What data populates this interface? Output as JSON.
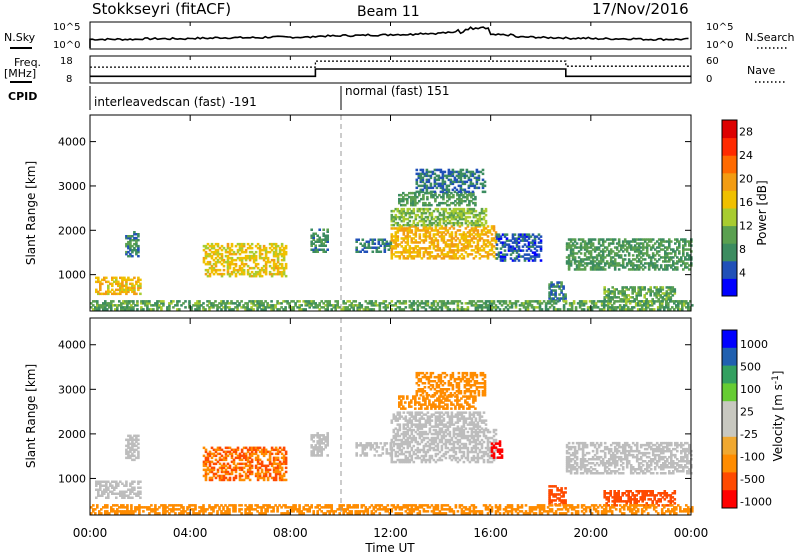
{
  "header": {
    "station": "Stokkseyri (fitACF)",
    "beam": "Beam 11",
    "date": "17/Nov/2016"
  },
  "labels": {
    "nsky": "N.Sky",
    "nsearch": "N.Search",
    "freq": "Freq.",
    "freq_unit": "[MHz]",
    "nave": "Nave",
    "cpid": "CPID",
    "nsky_top": "10^5",
    "nsky_bottom": "10^0",
    "nsearch_top": "10^5",
    "nsearch_bottom": "10^0",
    "freq_top": "18",
    "freq_bottom": "8",
    "nave_top": "60",
    "nave_bottom": "0"
  },
  "cpid_segments": [
    {
      "label": "interleavedscan (fast) -191",
      "start": "00:00",
      "end": "10:00"
    },
    {
      "label": "normal (fast) 151",
      "start": "10:00",
      "end": "24:00"
    }
  ],
  "colors": {
    "power": [
      "#0000ff",
      "#2050b8",
      "#3c8c60",
      "#5aa050",
      "#a8cc30",
      "#f0c000",
      "#f39c12",
      "#ff6a00",
      "#ff2a00",
      "#dd0000"
    ],
    "velocity": [
      "#ff0000",
      "#ff4a00",
      "#ff8c00",
      "#f0a830",
      "#c8c8c0",
      "#c8c8c0",
      "#66cc33",
      "#33a060",
      "#2060b0",
      "#0000ff"
    ],
    "ground_scatter": "#bdbdbd"
  },
  "chart_data": [
    {
      "type": "line",
      "title": "Stokkseyri (fitACF) Beam 11 17/Nov/2016",
      "xlabel": "Time UT",
      "x_ticks": [
        "00:00",
        "04:00",
        "08:00",
        "12:00",
        "16:00",
        "20:00",
        "00:00"
      ],
      "xlim": [
        "00:00",
        "24:00"
      ],
      "series": [
        {
          "name": "N.Sky",
          "values": [
            1.8,
            1.8,
            1.9,
            1.9,
            2.0,
            2.1,
            2.1,
            2.2,
            2.2,
            2.4,
            2.5,
            2.6,
            2.7,
            2.9,
            3.0,
            3.3,
            2.6,
            2.2,
            2.1,
            2.0,
            1.9,
            1.9,
            1.8,
            1.8
          ]
        },
        {
          "name": "Freq.",
          "unit": "MHz",
          "ylim": [
            8,
            18
          ],
          "steps": [
            {
              "from": "00:00",
              "to": "09:00",
              "value": 10.5
            },
            {
              "from": "09:00",
              "to": "19:00",
              "value": 13.2
            },
            {
              "from": "19:00",
              "to": "24:00",
              "value": 10.5
            }
          ]
        },
        {
          "name": "Nave",
          "ylim": [
            0,
            60
          ],
          "steps": [
            {
              "from": "00:00",
              "to": "09:00",
              "value": 25
            },
            {
              "from": "09:00",
              "to": "19:00",
              "value": 45
            },
            {
              "from": "19:00",
              "to": "24:00",
              "value": 28
            }
          ]
        }
      ]
    },
    {
      "type": "heatmap",
      "name": "Power",
      "ylabel": "Slant Range [km]",
      "y_ticks": [
        1000,
        2000,
        3000,
        4000
      ],
      "ylim": [
        180,
        4600
      ],
      "colorbar": {
        "label": "Power [dB]",
        "ticks": [
          4,
          8,
          12,
          16,
          20,
          24,
          28
        ],
        "range": [
          0,
          30
        ]
      },
      "regions": [
        {
          "t0": 0.2,
          "t1": 2.0,
          "r0": 550,
          "r1": 950,
          "value": 17
        },
        {
          "t0": 1.4,
          "t1": 1.9,
          "r0": 1400,
          "r1": 1950,
          "value": 8
        },
        {
          "t0": 4.5,
          "t1": 7.8,
          "r0": 950,
          "r1": 1700,
          "value": 16
        },
        {
          "t0": 8.8,
          "t1": 9.5,
          "r0": 1500,
          "r1": 2000,
          "value": 8
        },
        {
          "t0": 10.6,
          "t1": 12.0,
          "r0": 1500,
          "r1": 1800,
          "value": 6
        },
        {
          "t0": 12.0,
          "t1": 16.2,
          "r0": 1350,
          "r1": 2100,
          "value": 18
        },
        {
          "t0": 12.0,
          "t1": 15.8,
          "r0": 2100,
          "r1": 2500,
          "value": 12
        },
        {
          "t0": 12.3,
          "t1": 15.4,
          "r0": 2550,
          "r1": 2850,
          "value": 9
        },
        {
          "t0": 13.0,
          "t1": 15.8,
          "r0": 2850,
          "r1": 3350,
          "value": 6
        },
        {
          "t0": 16.2,
          "t1": 18.0,
          "r0": 1300,
          "r1": 1900,
          "value": 5
        },
        {
          "t0": 18.3,
          "t1": 19.0,
          "r0": 400,
          "r1": 850,
          "value": 7
        },
        {
          "t0": 19.0,
          "t1": 24.0,
          "r0": 1100,
          "r1": 1800,
          "value": 9
        },
        {
          "t0": 20.5,
          "t1": 23.3,
          "r0": 380,
          "r1": 700,
          "value": 10
        },
        {
          "t0": 0.0,
          "t1": 24.0,
          "r0": 200,
          "r1": 420,
          "value": 10
        }
      ]
    },
    {
      "type": "heatmap",
      "name": "Velocity",
      "ylabel": "Slant Range [km]",
      "y_ticks": [
        1000,
        2000,
        3000,
        4000
      ],
      "ylim": [
        180,
        4600
      ],
      "colorbar": {
        "label": "Velocity [m s^-1]",
        "ticks": [
          1000,
          500,
          100,
          25,
          -25,
          -100,
          -500,
          -1000
        ]
      },
      "regions": [
        {
          "t0": 0.2,
          "t1": 2.0,
          "r0": 550,
          "r1": 950,
          "value": 0
        },
        {
          "t0": 1.4,
          "t1": 1.9,
          "r0": 1400,
          "r1": 1950,
          "value": 0
        },
        {
          "t0": 4.5,
          "t1": 7.8,
          "r0": 950,
          "r1": 1700,
          "value": -300
        },
        {
          "t0": 8.8,
          "t1": 9.5,
          "r0": 1500,
          "r1": 2000,
          "value": 0
        },
        {
          "t0": 10.6,
          "t1": 12.0,
          "r0": 1500,
          "r1": 1800,
          "value": 0
        },
        {
          "t0": 12.0,
          "t1": 16.2,
          "r0": 1350,
          "r1": 2100,
          "value": 0
        },
        {
          "t0": 12.0,
          "t1": 15.8,
          "r0": 2100,
          "r1": 2500,
          "value": 0
        },
        {
          "t0": 12.3,
          "t1": 15.4,
          "r0": 2550,
          "r1": 2850,
          "value": -200
        },
        {
          "t0": 13.0,
          "t1": 15.8,
          "r0": 2850,
          "r1": 3350,
          "value": -150
        },
        {
          "t0": 16.0,
          "t1": 16.4,
          "r0": 1450,
          "r1": 1850,
          "value": -900
        },
        {
          "t0": 18.3,
          "t1": 19.0,
          "r0": 400,
          "r1": 850,
          "value": -600
        },
        {
          "t0": 19.0,
          "t1": 24.0,
          "r0": 1100,
          "r1": 1800,
          "value": 0
        },
        {
          "t0": 20.5,
          "t1": 23.3,
          "r0": 380,
          "r1": 700,
          "value": -500
        },
        {
          "t0": 0.0,
          "t1": 24.0,
          "r0": 200,
          "r1": 420,
          "value": -100
        }
      ]
    }
  ]
}
